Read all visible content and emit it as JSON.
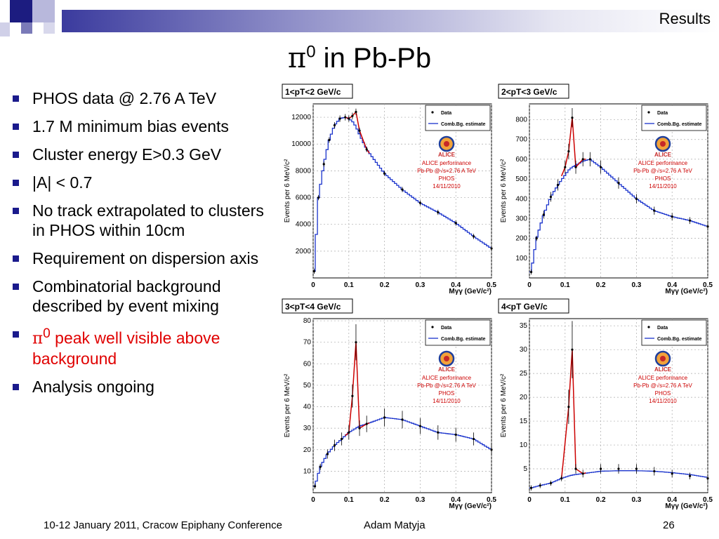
{
  "header": {
    "section": "Results"
  },
  "title": {
    "symbol": "π",
    "sup": "0",
    "rest": " in Pb-Pb"
  },
  "bullets": [
    {
      "text": "PHOS data @ 2.76 A TeV"
    },
    {
      "text": "1.7 M minimum bias events"
    },
    {
      "text": "Cluster energy E>0.3 GeV"
    },
    {
      "text": "|A| < 0.7"
    },
    {
      "text": "No track extrapolated to clusters in PHOS within 10cm"
    },
    {
      "text": "Requirement on dispersion axis"
    },
    {
      "text": "Combinatorial background described by event mixing"
    },
    {
      "symbol": "π",
      "sup": "0",
      "text": " peak well visible above background",
      "color": "#e00000"
    },
    {
      "text": "Analysis ongoing"
    }
  ],
  "footer": {
    "conference": "10-12 January 2011, Cracow Epiphany Conference",
    "author": "Adam Matyja",
    "page": "26"
  },
  "colors": {
    "data_fit": "#cc0000",
    "background": "#1a33cc",
    "bullet": "#1a1a8c",
    "highlight": "#e00000"
  },
  "chart_data": [
    {
      "type": "scatter",
      "title": "1<pT<2 GeV/c",
      "xlabel": "Mγγ (GeV/c²)",
      "ylabel": "Events per 6 MeV/c²",
      "xlim": [
        0,
        0.5
      ],
      "ylim": [
        0,
        13000
      ],
      "xticks": [
        "0",
        "0.1",
        "0.2",
        "0.3",
        "0.4",
        "0.5"
      ],
      "yticks": [
        "2000",
        "4000",
        "6000",
        "8000",
        "10000",
        "12000"
      ],
      "ytick_values": [
        2000,
        4000,
        6000,
        8000,
        10000,
        12000
      ],
      "legend": [
        "Data",
        "Comb.Bg. estimate"
      ],
      "annotation": [
        "ALICE performance",
        "Pb-Pb @√s=2.76 A TeV",
        "PHOS",
        "14/11/2010"
      ],
      "series": [
        {
          "name": "Data",
          "x": [
            0.003,
            0.015,
            0.03,
            0.045,
            0.06,
            0.075,
            0.09,
            0.1,
            0.11,
            0.12,
            0.13,
            0.15,
            0.2,
            0.25,
            0.3,
            0.35,
            0.4,
            0.45,
            0.5
          ],
          "y": [
            500,
            6000,
            8500,
            10300,
            11400,
            11900,
            12000,
            11900,
            12100,
            12400,
            11000,
            9600,
            7800,
            6600,
            5600,
            4900,
            4100,
            3100,
            2200
          ]
        },
        {
          "name": "Comb.Bg. estimate",
          "x": [
            0.003,
            0.015,
            0.03,
            0.045,
            0.06,
            0.075,
            0.09,
            0.1,
            0.11,
            0.12,
            0.13,
            0.15,
            0.2,
            0.25,
            0.3,
            0.35,
            0.4,
            0.45,
            0.5
          ],
          "y": [
            500,
            6000,
            8500,
            10300,
            11400,
            11900,
            12000,
            11900,
            11700,
            11300,
            10700,
            9600,
            7800,
            6600,
            5600,
            4900,
            4100,
            3100,
            2200
          ]
        }
      ]
    },
    {
      "type": "scatter",
      "title": "2<pT<3 GeV/c",
      "xlabel": "Mγγ (GeV/c²)",
      "ylabel": "Events per 6 MeV/c²",
      "xlim": [
        0,
        0.5
      ],
      "ylim": [
        0,
        880
      ],
      "xticks": [
        "0",
        "0.1",
        "0.2",
        "0.3",
        "0.4",
        "0.5"
      ],
      "yticks": [
        "100",
        "200",
        "300",
        "400",
        "500",
        "600",
        "700",
        "800"
      ],
      "ytick_values": [
        100,
        200,
        300,
        400,
        500,
        600,
        700,
        800
      ],
      "legend": [
        "Data",
        "Comb.Bg. estimate"
      ],
      "annotation": [
        "ALICE performance",
        "Pb-Pb @√s=2.76 A TeV",
        "PHOS",
        "14/11/2010"
      ],
      "series": [
        {
          "name": "Data",
          "x": [
            0.005,
            0.02,
            0.04,
            0.06,
            0.08,
            0.1,
            0.11,
            0.12,
            0.13,
            0.15,
            0.17,
            0.2,
            0.25,
            0.3,
            0.35,
            0.4,
            0.45,
            0.5
          ],
          "y": [
            30,
            200,
            320,
            410,
            470,
            560,
            640,
            810,
            560,
            600,
            600,
            560,
            480,
            400,
            340,
            310,
            290,
            260
          ]
        },
        {
          "name": "Comb.Bg. estimate",
          "x": [
            0.005,
            0.02,
            0.04,
            0.06,
            0.08,
            0.1,
            0.11,
            0.12,
            0.13,
            0.15,
            0.17,
            0.2,
            0.25,
            0.3,
            0.35,
            0.4,
            0.45,
            0.5
          ],
          "y": [
            30,
            200,
            320,
            410,
            470,
            520,
            545,
            560,
            570,
            590,
            600,
            560,
            480,
            400,
            340,
            310,
            290,
            260
          ]
        }
      ]
    },
    {
      "type": "scatter",
      "title": "3<pT<4 GeV/c",
      "xlabel": "Mγγ (GeV/c²)",
      "ylabel": "Events per 6 MeV/c²",
      "xlim": [
        0,
        0.5
      ],
      "ylim": [
        0,
        81
      ],
      "xticks": [
        "0",
        "0.1",
        "0.2",
        "0.3",
        "0.4",
        "0.5"
      ],
      "yticks": [
        "10",
        "20",
        "30",
        "40",
        "50",
        "60",
        "70",
        "80"
      ],
      "ytick_values": [
        10,
        20,
        30,
        40,
        50,
        60,
        70,
        80
      ],
      "legend": [
        "Data",
        "Comb.Bg. estimate"
      ],
      "annotation": [
        "ALICE performance",
        "Pb-Pb @√s=2.76 A TeV",
        "PHOS",
        "14/11/2010"
      ],
      "series": [
        {
          "name": "Data",
          "x": [
            0.005,
            0.02,
            0.04,
            0.06,
            0.08,
            0.1,
            0.11,
            0.12,
            0.13,
            0.15,
            0.2,
            0.25,
            0.3,
            0.35,
            0.4,
            0.45,
            0.5
          ],
          "y": [
            3,
            12,
            18,
            22,
            25,
            28,
            45,
            70,
            30,
            32,
            35,
            34,
            31,
            28,
            27,
            25,
            20
          ]
        },
        {
          "name": "Comb.Bg. estimate",
          "x": [
            0.005,
            0.02,
            0.04,
            0.06,
            0.08,
            0.1,
            0.11,
            0.12,
            0.13,
            0.15,
            0.2,
            0.25,
            0.3,
            0.35,
            0.4,
            0.45,
            0.5
          ],
          "y": [
            3,
            12,
            18,
            22,
            25,
            28,
            29,
            30,
            31,
            32,
            35,
            34,
            31,
            28,
            27,
            25,
            20
          ]
        }
      ]
    },
    {
      "type": "scatter",
      "title": "4<pT GeV/c",
      "xlabel": "Mγγ (GeV/c²)",
      "ylabel": "Events per 6 MeV/c²",
      "xlim": [
        0,
        0.5
      ],
      "ylim": [
        0,
        36.5
      ],
      "xticks": [
        "0",
        "0.1",
        "0.2",
        "0.3",
        "0.4",
        "0.5"
      ],
      "yticks": [
        "5",
        "10",
        "15",
        "20",
        "25",
        "30",
        "35"
      ],
      "ytick_values": [
        5,
        10,
        15,
        20,
        25,
        30,
        35
      ],
      "legend": [
        "Data",
        "Comb.Bg. estimate"
      ],
      "annotation": [
        "ALICE performance",
        "Pb-Pb @√s=2.76 A TeV",
        "PHOS",
        "14/11/2010"
      ],
      "series": [
        {
          "name": "Data",
          "x": [
            0.005,
            0.03,
            0.06,
            0.09,
            0.11,
            0.12,
            0.13,
            0.15,
            0.2,
            0.25,
            0.3,
            0.35,
            0.4,
            0.45,
            0.5
          ],
          "y": [
            1,
            1.5,
            2,
            3,
            18,
            30,
            5,
            4,
            5,
            5,
            5,
            4.5,
            4,
            3.5,
            3
          ]
        },
        {
          "name": "Comb.Bg. estimate",
          "x": [
            0.005,
            0.03,
            0.06,
            0.09,
            0.11,
            0.12,
            0.13,
            0.15,
            0.2,
            0.25,
            0.3,
            0.35,
            0.4,
            0.45,
            0.5
          ],
          "y": [
            1,
            1.5,
            2,
            3,
            3.5,
            3.7,
            3.8,
            4,
            4.5,
            4.6,
            4.6,
            4.5,
            4.2,
            3.8,
            3.2
          ]
        }
      ]
    }
  ]
}
